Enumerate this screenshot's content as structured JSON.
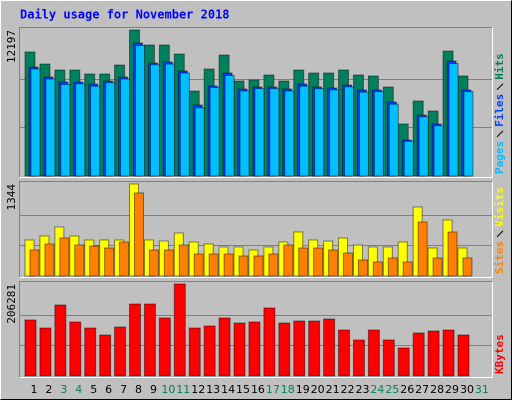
{
  "chart_data": [
    {
      "type": "bar",
      "title": "Daily usage for November 2018",
      "ylim": [
        0,
        12197
      ],
      "yticks": [
        12197
      ],
      "series": [
        {
          "name": "Hits",
          "color": "#00805c",
          "values": [
            10359,
            9356,
            8855,
            8855,
            8521,
            8521,
            9273,
            12197,
            10944,
            10944,
            10192,
            7101,
            8939,
            10108,
            7936,
            8020,
            8438,
            7936,
            8855,
            8605,
            8605,
            8855,
            8438,
            8354,
            7435,
            4344,
            6266,
            5430,
            10443,
            8354,
            null
          ]
        },
        {
          "name": "Files",
          "color": "#0040ff",
          "values": [
            9106,
            8270,
            7853,
            7853,
            7686,
            7936,
            8270,
            11111,
            9440,
            9524,
            8772,
            5931,
            7519,
            8605,
            7268,
            7435,
            7435,
            7268,
            7686,
            7435,
            7352,
            7602,
            7184,
            7184,
            6182,
            3007,
            5096,
            4344,
            9607,
            7184,
            null
          ]
        },
        {
          "name": "Pages",
          "color": "#00c0ff",
          "values": [
            8940,
            8100,
            7650,
            7700,
            7500,
            7800,
            8100,
            10900,
            9300,
            9350,
            8600,
            5700,
            7400,
            8400,
            7100,
            7300,
            7300,
            7100,
            7500,
            7300,
            7200,
            7450,
            7000,
            7050,
            6000,
            2900,
            4950,
            4200,
            9400,
            7050,
            null
          ]
        }
      ]
    },
    {
      "type": "bar",
      "ylim": [
        0,
        1344
      ],
      "yticks": [
        1344
      ],
      "series": [
        {
          "name": "Visits",
          "color": "#ffff00",
          "values": [
            526,
            584,
            716,
            584,
            526,
            526,
            526,
            1344,
            526,
            511,
            628,
            497,
            468,
            424,
            424,
            380,
            424,
            497,
            643,
            526,
            511,
            555,
            453,
            424,
            424,
            497,
            1008,
            409,
            818,
            409,
            null
          ]
        },
        {
          "name": "Sites",
          "color": "#ff8000",
          "values": [
            380,
            468,
            555,
            453,
            438,
            409,
            497,
            1213,
            380,
            380,
            453,
            321,
            321,
            321,
            292,
            292,
            321,
            453,
            409,
            409,
            380,
            336,
            234,
            205,
            263,
            205,
            789,
            263,
            643,
            263,
            null
          ]
        }
      ]
    },
    {
      "type": "bar",
      "ylim": [
        0,
        206281
      ],
      "yticks": [
        206281
      ],
      "categories": [
        "1",
        "2",
        "3",
        "4",
        "5",
        "6",
        "7",
        "8",
        "9",
        "10",
        "11",
        "12",
        "13",
        "14",
        "15",
        "16",
        "17",
        "18",
        "19",
        "20",
        "21",
        "22",
        "23",
        "24",
        "25",
        "26",
        "27",
        "28",
        "29",
        "30",
        "31"
      ],
      "category_colors": [
        "#000000",
        "#000000",
        "#00805c",
        "#00805c",
        "#000000",
        "#000000",
        "#000000",
        "#000000",
        "#000000",
        "#00805c",
        "#00805c",
        "#000000",
        "#000000",
        "#000000",
        "#000000",
        "#000000",
        "#00805c",
        "#00805c",
        "#000000",
        "#000000",
        "#000000",
        "#000000",
        "#000000",
        "#00805c",
        "#00805c",
        "#000000",
        "#000000",
        "#000000",
        "#000000",
        "#000000",
        "#00805c"
      ],
      "series": [
        {
          "name": "KBytes",
          "color": "#ff0000",
          "values": [
            125552,
            107616,
            159182,
            121068,
            107616,
            91922,
            109858,
            161424,
            161424,
            130036,
            206281,
            107616,
            112100,
            130036,
            118826,
            121068,
            152456,
            118826,
            123310,
            123310,
            127794,
            103132,
            80712,
            103132,
            80712,
            62776,
            96406,
            100890,
            103132,
            91922,
            null
          ]
        }
      ]
    }
  ]
}
